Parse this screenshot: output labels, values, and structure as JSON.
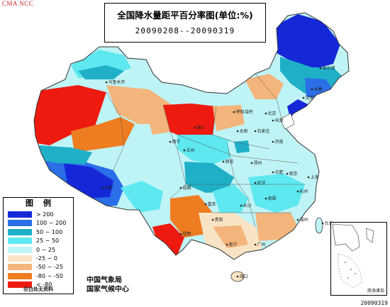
{
  "corner_tag": "CMA   NCC",
  "title": {
    "main": "全国降水量距平百分率图(单位:%)",
    "dates": "20090208--20090319"
  },
  "legend": {
    "title": "图例",
    "items": [
      {
        "label": "> 200",
        "color": "#1428d8"
      },
      {
        "label": "100 ~ 200",
        "color": "#2a6ee8"
      },
      {
        "label": "50 ~ 100",
        "color": "#1fb0c8"
      },
      {
        "label": "25 ~ 50",
        "color": "#5ee8f0"
      },
      {
        "label": "0 ~ 25",
        "color": "#bff4f6"
      },
      {
        "label": "-25 ~ 0",
        "color": "#f8e4c4"
      },
      {
        "label": "-50 ~ -25",
        "color": "#f3b57c"
      },
      {
        "label": "-80 ~ -50",
        "color": "#ee7d22"
      },
      {
        "label": "< -80",
        "color": "#ee1a10"
      }
    ],
    "note": "空白处无资料"
  },
  "issuer": [
    "中国气象局",
    "国家气候中心"
  ],
  "inset_label": "南海诸岛",
  "date_stamp": "20090319",
  "cities": [
    "乌鲁木齐",
    "呼和浩特",
    "哈尔滨",
    "长春",
    "沈阳",
    "北京",
    "天津",
    "石家庄",
    "太原",
    "济南",
    "银川",
    "西宁",
    "兰州",
    "郑州",
    "西安",
    "合肥",
    "南京",
    "上海",
    "武汉",
    "成都",
    "重庆",
    "长沙",
    "南昌",
    "杭州",
    "贵阳",
    "福州",
    "昆明",
    "南宁",
    "广州",
    "台北",
    "海口",
    "拉萨"
  ]
}
